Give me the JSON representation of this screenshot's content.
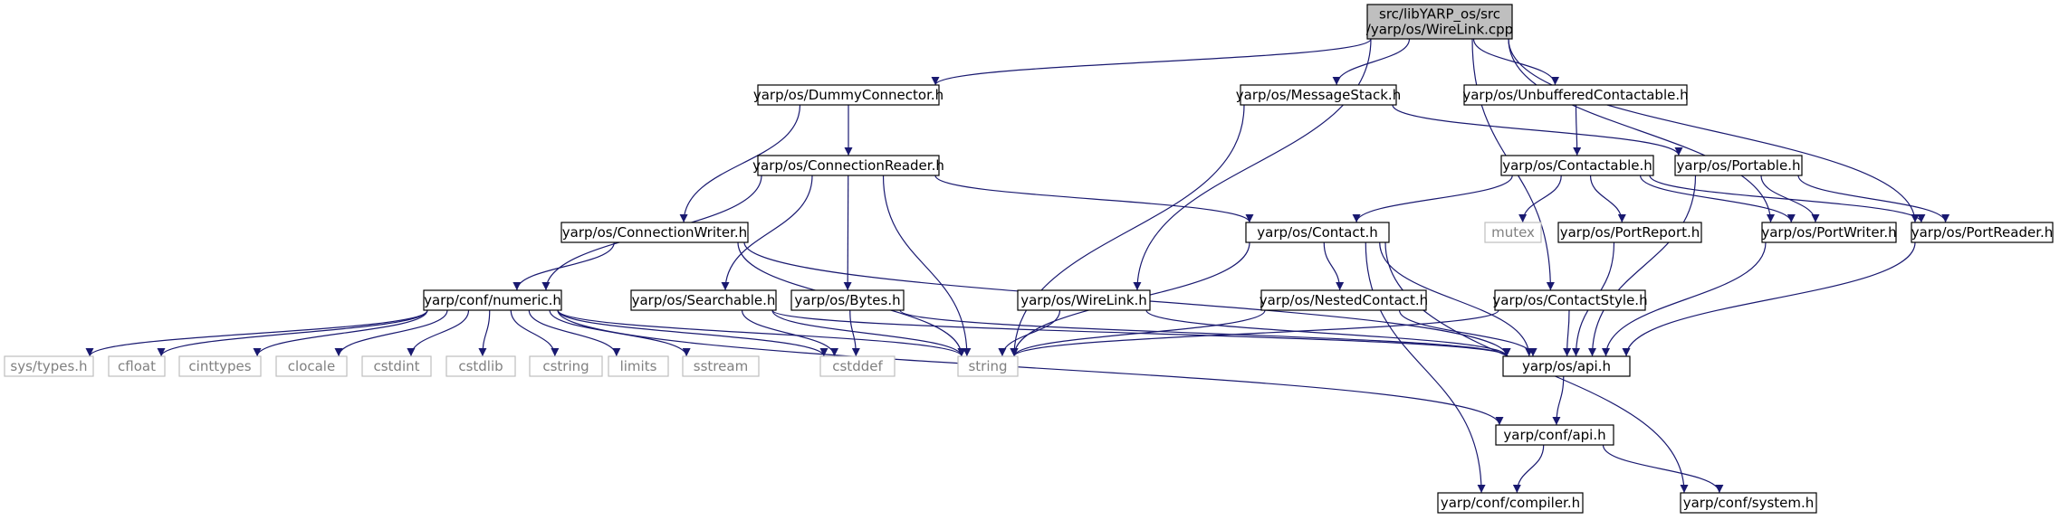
{
  "graph": {
    "colors": {
      "edge": "#191970",
      "root_fill": "#bfbfbf",
      "system_border": "#bfbfbf",
      "system_text": "#808080"
    },
    "nodes": [
      {
        "id": "root",
        "label": [
          "src/libYARP_os/src",
          "/yarp/os/WireLink.cpp"
        ],
        "kind": "root"
      },
      {
        "id": "dummy",
        "label": [
          "yarp/os/DummyConnector.h"
        ],
        "kind": "header"
      },
      {
        "id": "msgstack",
        "label": [
          "yarp/os/MessageStack.h"
        ],
        "kind": "header"
      },
      {
        "id": "unbuf",
        "label": [
          "yarp/os/UnbufferedContactable.h"
        ],
        "kind": "header"
      },
      {
        "id": "connreader",
        "label": [
          "yarp/os/ConnectionReader.h"
        ],
        "kind": "header"
      },
      {
        "id": "contactable",
        "label": [
          "yarp/os/Contactable.h"
        ],
        "kind": "header"
      },
      {
        "id": "portable",
        "label": [
          "yarp/os/Portable.h"
        ],
        "kind": "header"
      },
      {
        "id": "connwriter",
        "label": [
          "yarp/os/ConnectionWriter.h"
        ],
        "kind": "header"
      },
      {
        "id": "contact",
        "label": [
          "yarp/os/Contact.h"
        ],
        "kind": "header"
      },
      {
        "id": "mutex",
        "label": [
          "mutex"
        ],
        "kind": "system"
      },
      {
        "id": "portreport",
        "label": [
          "yarp/os/PortReport.h"
        ],
        "kind": "header"
      },
      {
        "id": "portwriter",
        "label": [
          "yarp/os/PortWriter.h"
        ],
        "kind": "header"
      },
      {
        "id": "portreader",
        "label": [
          "yarp/os/PortReader.h"
        ],
        "kind": "header"
      },
      {
        "id": "numeric",
        "label": [
          "yarp/conf/numeric.h"
        ],
        "kind": "header"
      },
      {
        "id": "searchable",
        "label": [
          "yarp/os/Searchable.h"
        ],
        "kind": "header"
      },
      {
        "id": "bytes",
        "label": [
          "yarp/os/Bytes.h"
        ],
        "kind": "header"
      },
      {
        "id": "wirelink",
        "label": [
          "yarp/os/WireLink.h"
        ],
        "kind": "header"
      },
      {
        "id": "nested",
        "label": [
          "yarp/os/NestedContact.h"
        ],
        "kind": "header"
      },
      {
        "id": "contactstyle",
        "label": [
          "yarp/os/ContactStyle.h"
        ],
        "kind": "header"
      },
      {
        "id": "systypes",
        "label": [
          "sys/types.h"
        ],
        "kind": "system"
      },
      {
        "id": "cfloat",
        "label": [
          "cfloat"
        ],
        "kind": "system"
      },
      {
        "id": "cinttypes",
        "label": [
          "cinttypes"
        ],
        "kind": "system"
      },
      {
        "id": "clocale",
        "label": [
          "clocale"
        ],
        "kind": "system"
      },
      {
        "id": "cstdint",
        "label": [
          "cstdint"
        ],
        "kind": "system"
      },
      {
        "id": "cstdlib",
        "label": [
          "cstdlib"
        ],
        "kind": "system"
      },
      {
        "id": "cstring",
        "label": [
          "cstring"
        ],
        "kind": "system"
      },
      {
        "id": "limits",
        "label": [
          "limits"
        ],
        "kind": "system"
      },
      {
        "id": "sstream",
        "label": [
          "sstream"
        ],
        "kind": "system"
      },
      {
        "id": "cstddef",
        "label": [
          "cstddef"
        ],
        "kind": "system"
      },
      {
        "id": "string",
        "label": [
          "string"
        ],
        "kind": "system"
      },
      {
        "id": "osapi",
        "label": [
          "yarp/os/api.h"
        ],
        "kind": "header"
      },
      {
        "id": "confapi",
        "label": [
          "yarp/conf/api.h"
        ],
        "kind": "header"
      },
      {
        "id": "compiler",
        "label": [
          "yarp/conf/compiler.h"
        ],
        "kind": "header"
      },
      {
        "id": "system",
        "label": [
          "yarp/conf/system.h"
        ],
        "kind": "header"
      }
    ],
    "edges": [
      [
        "root",
        "dummy"
      ],
      [
        "root",
        "msgstack"
      ],
      [
        "root",
        "unbuf"
      ],
      [
        "root",
        "wirelink"
      ],
      [
        "root",
        "contactstyle"
      ],
      [
        "root",
        "portwriter"
      ],
      [
        "root",
        "portreader"
      ],
      [
        "dummy",
        "connreader"
      ],
      [
        "dummy",
        "connwriter"
      ],
      [
        "msgstack",
        "string"
      ],
      [
        "msgstack",
        "portable"
      ],
      [
        "unbuf",
        "contactable"
      ],
      [
        "connreader",
        "numeric"
      ],
      [
        "connreader",
        "searchable"
      ],
      [
        "connreader",
        "bytes"
      ],
      [
        "connreader",
        "string"
      ],
      [
        "connreader",
        "contact"
      ],
      [
        "contactable",
        "contact"
      ],
      [
        "contactable",
        "mutex"
      ],
      [
        "contactable",
        "portreport"
      ],
      [
        "contactable",
        "portwriter"
      ],
      [
        "contactable",
        "portreader"
      ],
      [
        "portable",
        "portwriter"
      ],
      [
        "portable",
        "portreader"
      ],
      [
        "portable",
        "osapi"
      ],
      [
        "connwriter",
        "numeric"
      ],
      [
        "connwriter",
        "string"
      ],
      [
        "connwriter",
        "osapi"
      ],
      [
        "contact",
        "nested"
      ],
      [
        "contact",
        "string"
      ],
      [
        "contact",
        "osapi"
      ],
      [
        "contact",
        "compiler"
      ],
      [
        "contact",
        "system"
      ],
      [
        "portreport",
        "osapi"
      ],
      [
        "portwriter",
        "osapi"
      ],
      [
        "portreader",
        "osapi"
      ],
      [
        "numeric",
        "systypes"
      ],
      [
        "numeric",
        "cfloat"
      ],
      [
        "numeric",
        "cinttypes"
      ],
      [
        "numeric",
        "clocale"
      ],
      [
        "numeric",
        "cstdint"
      ],
      [
        "numeric",
        "cstdlib"
      ],
      [
        "numeric",
        "cstring"
      ],
      [
        "numeric",
        "limits"
      ],
      [
        "numeric",
        "sstream"
      ],
      [
        "numeric",
        "cstddef"
      ],
      [
        "numeric",
        "string"
      ],
      [
        "numeric",
        "confapi"
      ],
      [
        "searchable",
        "cstddef"
      ],
      [
        "searchable",
        "string"
      ],
      [
        "searchable",
        "osapi"
      ],
      [
        "bytes",
        "cstddef"
      ],
      [
        "bytes",
        "osapi"
      ],
      [
        "wirelink",
        "string"
      ],
      [
        "wirelink",
        "osapi"
      ],
      [
        "nested",
        "string"
      ],
      [
        "nested",
        "osapi"
      ],
      [
        "contactstyle",
        "string"
      ],
      [
        "contactstyle",
        "osapi"
      ],
      [
        "osapi",
        "confapi"
      ],
      [
        "confapi",
        "compiler"
      ],
      [
        "confapi",
        "system"
      ]
    ]
  }
}
